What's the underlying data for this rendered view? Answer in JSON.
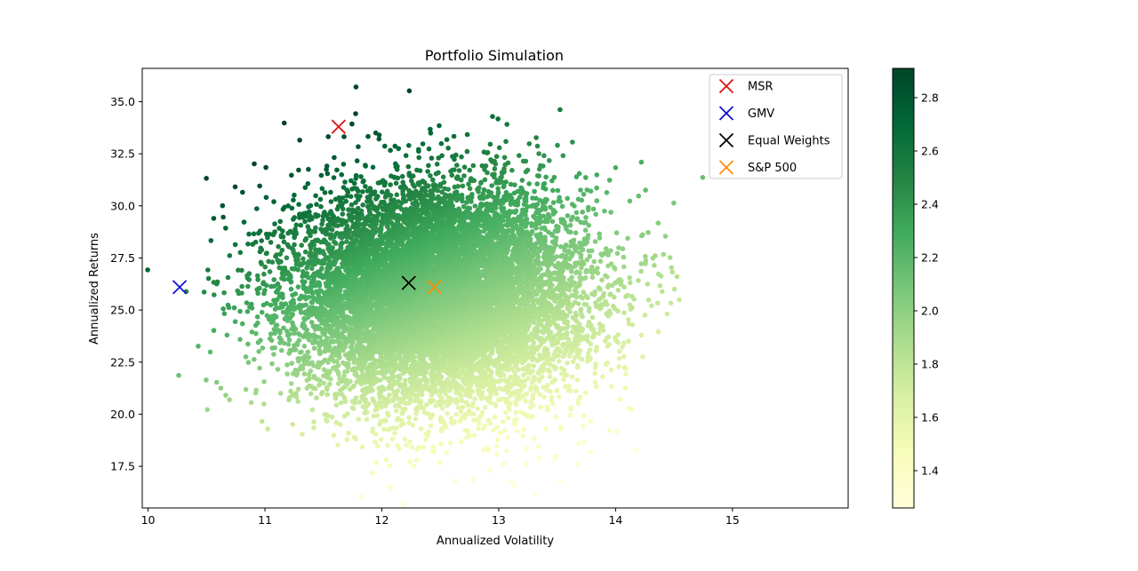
{
  "chart_data": {
    "type": "scatter",
    "title": "Portfolio Simulation",
    "xlabel": "Annualized Volatility",
    "ylabel": "Annualized Returns",
    "xlim": [
      9.95,
      15.99
    ],
    "ylim": [
      15.5,
      36.6
    ],
    "x_ticks": [
      10,
      11,
      12,
      13,
      14,
      15
    ],
    "x_tick_labels": [
      "10",
      "11",
      "12",
      "13",
      "14",
      "15"
    ],
    "y_ticks": [
      17.5,
      20.0,
      22.5,
      25.0,
      27.5,
      30.0,
      32.5,
      35.0
    ],
    "y_tick_labels": [
      "17.5",
      "20.0",
      "22.5",
      "25.0",
      "27.5",
      "30.0",
      "32.5",
      "35.0"
    ],
    "grid": false,
    "colorbar": {
      "label": "",
      "range": [
        1.26,
        2.91
      ],
      "ticks": [
        1.4,
        1.6,
        1.8,
        2.0,
        2.2,
        2.4,
        2.6,
        2.8
      ],
      "tick_labels": [
        "1.4",
        "1.6",
        "1.8",
        "2.0",
        "2.2",
        "2.4",
        "2.6",
        "2.8"
      ],
      "colormap": [
        "#ffffd9",
        "#f7fcb9",
        "#d9f0a3",
        "#addd8e",
        "#78c679",
        "#41ab5d",
        "#238443",
        "#006837",
        "#004529"
      ]
    },
    "cloud": {
      "description": "simulated random portfolios, colored by Sharpe ratio",
      "center_volatility": 12.5,
      "center_return": 25.7,
      "volatility_sd": 0.62,
      "return_sd": 2.6
    },
    "highlighted_points": [
      {
        "name": "MSR",
        "volatility": 11.63,
        "return": 33.8,
        "color": "#dd1111"
      },
      {
        "name": "GMV",
        "volatility": 10.27,
        "return": 26.1,
        "color": "#1111cc"
      },
      {
        "name": "Equal Weights",
        "volatility": 12.23,
        "return": 26.3,
        "color": "#000000"
      },
      {
        "name": "S&P 500",
        "volatility": 12.45,
        "return": 26.1,
        "color": "#ff8c00"
      }
    ],
    "legend": {
      "placement": "top-right",
      "entries": [
        "MSR",
        "GMV",
        "Equal Weights",
        "S&P 500"
      ]
    }
  }
}
